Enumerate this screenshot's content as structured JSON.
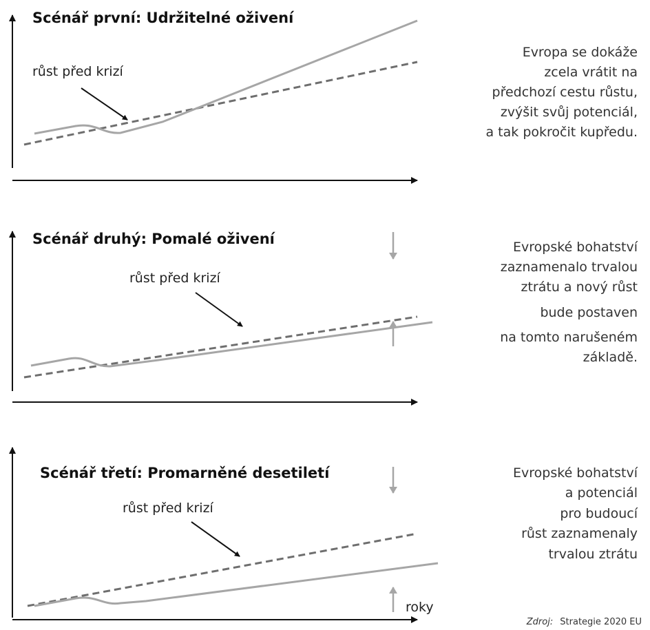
{
  "panels": [
    {
      "title": "Scénář první: Udržitelné oživení",
      "pre_crisis_label": "růst před krizí",
      "description": [
        "Evropa se dokáže",
        "zcela vrátit na",
        "předchozí cestu růstu,",
        "zvýšit svůj potenciál,",
        "a tak pokročit kupředu."
      ]
    },
    {
      "title": "Scénář druhý: Pomalé oživení",
      "pre_crisis_label": "růst před krizí",
      "description": [
        "Evropské bohatství",
        "zaznamenalo trvalou",
        "ztrátu a nový růst",
        "bude postaven",
        "na tomto narušeném",
        "základě."
      ]
    },
    {
      "title": "Scénář třetí: Promarněné desetiletí",
      "pre_crisis_label": "růst před krizí",
      "description": [
        "Evropské bohatství",
        "a potenciál",
        "pro budoucí",
        "růst zaznamenaly",
        "trvalou ztrátu"
      ],
      "x_axis_label": "roky"
    }
  ],
  "source": {
    "prefix": "Zdroj:",
    "text": "Strategie 2020 EU"
  },
  "colors": {
    "axis": "#111111",
    "curve": "#a6a6a6",
    "dashed": "#6e6e6e",
    "gap_arrow": "#a6a6a6",
    "pointer": "#111111"
  }
}
